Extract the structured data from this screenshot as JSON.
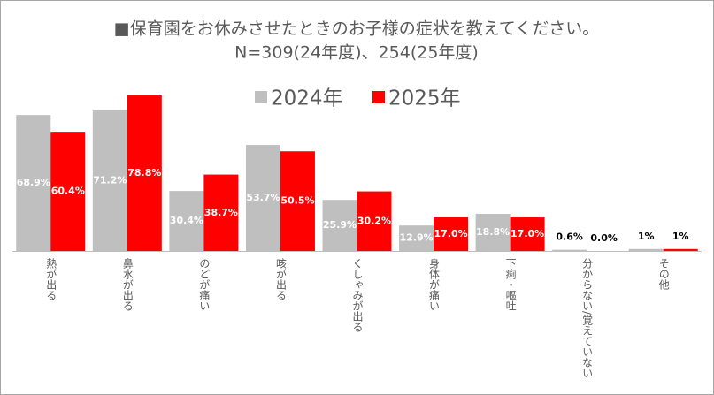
{
  "chart_data": {
    "type": "bar",
    "title": "■保育園をお休みさせたときのお子様の症状を教えてください。",
    "subtitle": "N=309(24年度)、254(25年度)",
    "categories": [
      "熱が出る",
      "鼻水が出る",
      "のどが痛い",
      "咳が出る",
      "くしゃみが出る",
      "身体が痛い",
      "下痢・嘔吐",
      "分からない/覚えていない",
      "その他"
    ],
    "series": [
      {
        "name": "2024年",
        "color": "#bfbfbf",
        "values": [
          68.9,
          71.2,
          30.4,
          53.7,
          25.9,
          12.9,
          18.8,
          0.6,
          1
        ],
        "value_labels": [
          "68.9%",
          "71.2%",
          "30.4%",
          "53.7%",
          "25.9%",
          "12.9%",
          "18.8%",
          "0.6%",
          "1%"
        ]
      },
      {
        "name": "2025年",
        "color": "#ff0000",
        "values": [
          60.4,
          78.8,
          38.7,
          50.5,
          30.2,
          17.0,
          17.0,
          0.0,
          1
        ],
        "value_labels": [
          "60.4%",
          "78.8%",
          "38.7%",
          "50.5%",
          "30.2%",
          "17.0%",
          "17.0%",
          "0.0%",
          "1%"
        ]
      }
    ],
    "legend": "top"
  }
}
